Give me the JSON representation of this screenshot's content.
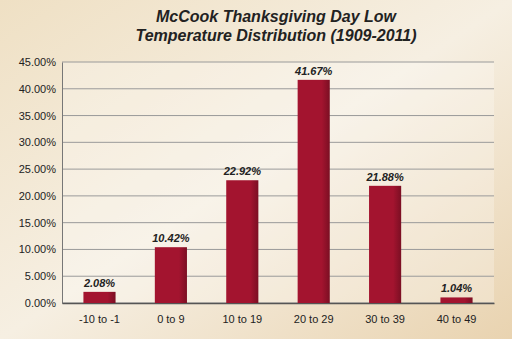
{
  "chart_data": {
    "type": "bar",
    "title": "McCook Thanksgiving Day Low Temperature Distribution (1909-2011)",
    "categories": [
      "-10 to -1",
      "0 to 9",
      "10 to 19",
      "20 to 29",
      "30 to 39",
      "40 to 49"
    ],
    "values": [
      2.08,
      10.42,
      22.92,
      41.67,
      21.88,
      1.04
    ],
    "value_labels": [
      "2.08%",
      "10.42%",
      "22.92%",
      "41.67%",
      "21.88%",
      "1.04%"
    ],
    "color": "#a3142f",
    "ylim": [
      0,
      45
    ],
    "yticks": [
      {
        "value": 0,
        "label": "0.00%"
      },
      {
        "value": 5,
        "label": "5.00%"
      },
      {
        "value": 10,
        "label": "10.00%"
      },
      {
        "value": 15,
        "label": "15.00%"
      },
      {
        "value": 20,
        "label": "20.00%"
      },
      {
        "value": 25,
        "label": "25.00%"
      },
      {
        "value": 30,
        "label": "30.00%"
      },
      {
        "value": 35,
        "label": "35.00%"
      },
      {
        "value": 40,
        "label": "40.00%"
      },
      {
        "value": 45,
        "label": "45.00%"
      }
    ],
    "grid": true,
    "data_labels": true
  }
}
